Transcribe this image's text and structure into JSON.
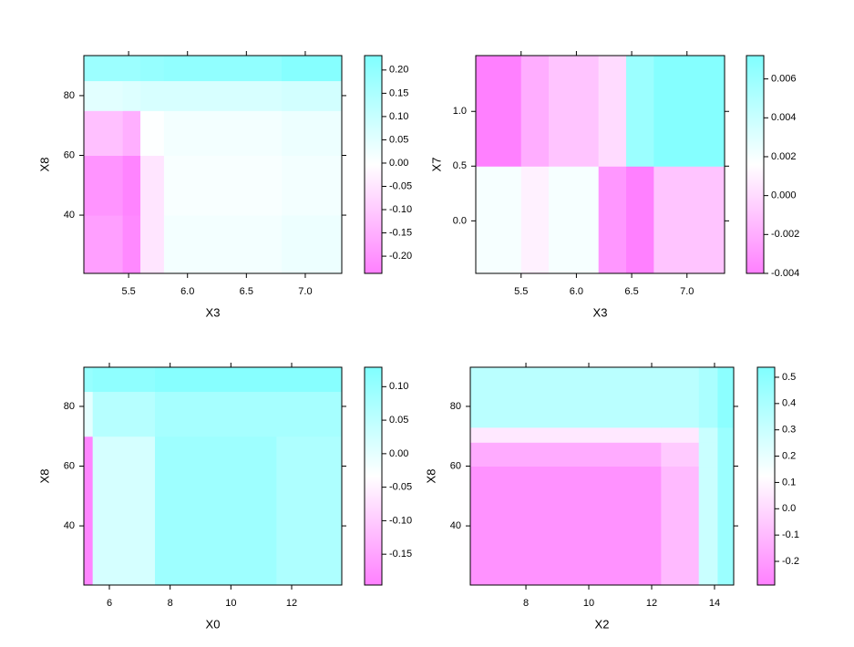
{
  "chart_data": [
    {
      "type": "heatmap",
      "xlabel": "X3",
      "ylabel": "X8",
      "colors": [
        "#ff80ff",
        "#ffffff",
        "#80ffff"
      ],
      "x": [
        5.12,
        5.45,
        5.6,
        5.8,
        6.8,
        7.31
      ],
      "y": [
        20.5,
        40,
        60,
        75,
        85,
        93.4
      ],
      "z": [
        [
          -0.18,
          -0.22,
          -0.05,
          0.02,
          0.03
        ],
        [
          -0.2,
          -0.23,
          -0.05,
          0.01,
          0.02
        ],
        [
          -0.12,
          -0.15,
          0.0,
          0.02,
          0.03
        ],
        [
          0.05,
          0.06,
          0.07,
          0.07,
          0.08
        ],
        [
          0.18,
          0.18,
          0.19,
          0.2,
          0.22
        ]
      ],
      "xlim": [
        5.12,
        7.31
      ],
      "ylim": [
        20.5,
        93.4
      ],
      "zlim": [
        -0.237,
        0.231
      ],
      "xticks": [
        5.5,
        {
          "value": 6,
          "label": "6.0"
        },
        6.5,
        {
          "value": 7,
          "label": "7.0"
        }
      ],
      "yticks": [
        40,
        60,
        80
      ],
      "zticks": [
        {
          "value": 0.2,
          "label": "0.20"
        },
        0.15,
        {
          "value": 0.1,
          "label": "0.10"
        },
        0.05,
        {
          "value": 0,
          "label": "0.00"
        },
        -0.05,
        {
          "value": -0.1,
          "label": "-0.10"
        },
        -0.15,
        {
          "value": -0.2,
          "label": "-0.20"
        }
      ]
    },
    {
      "type": "heatmap",
      "xlabel": "X3",
      "ylabel": "X7",
      "colors": [
        "#ff80ff",
        "#ffffff",
        "#80ffff"
      ],
      "x": [
        5.09,
        5.5,
        5.75,
        6.2,
        6.45,
        6.7,
        7.0,
        7.34
      ],
      "y": [
        -0.48,
        0.5,
        1.51
      ],
      "z": [
        [
          0.002,
          0.001,
          0.002,
          -0.003,
          -0.004,
          -0.001,
          -0.001
        ],
        [
          -0.004,
          -0.002,
          -0.001,
          0.0,
          0.006,
          0.007,
          0.007
        ]
      ],
      "xlim": [
        5.09,
        7.34
      ],
      "ylim": [
        -0.48,
        1.51
      ],
      "zlim": [
        -0.004,
        0.0072
      ],
      "xticks": [
        5.5,
        {
          "value": 6,
          "label": "6.0"
        },
        6.5,
        {
          "value": 7,
          "label": "7.0"
        }
      ],
      "yticks": [
        {
          "value": 0,
          "label": "0.0"
        },
        0.5,
        {
          "value": 1,
          "label": "1.0"
        }
      ],
      "zticks": [
        -0.004,
        -0.002,
        {
          "value": 0,
          "label": "0.000"
        },
        0.002,
        0.004,
        0.006
      ]
    },
    {
      "type": "heatmap",
      "xlabel": "X0",
      "ylabel": "X8",
      "colors": [
        "#ff80ff",
        "#ffffff",
        "#80ffff"
      ],
      "x": [
        5.16,
        5.45,
        7.5,
        11.5,
        13.65
      ],
      "y": [
        20.2,
        70,
        85,
        93.1
      ],
      "z": [
        [
          -0.19,
          0.02,
          0.09,
          0.07
        ],
        [
          0.0,
          0.06,
          0.08,
          0.08
        ],
        [
          0.1,
          0.11,
          0.12,
          0.12
        ]
      ],
      "xlim": [
        5.16,
        13.65
      ],
      "ylim": [
        20.2,
        93.1
      ],
      "zlim": [
        -0.196,
        0.129
      ],
      "xticks": [
        6,
        8,
        10,
        12
      ],
      "yticks": [
        40,
        60,
        80
      ],
      "zticks": [
        {
          "value": 0.1,
          "label": "0.10"
        },
        0.05,
        {
          "value": 0,
          "label": "0.00"
        },
        -0.05,
        {
          "value": -0.1,
          "label": "-0.10"
        },
        -0.15
      ]
    },
    {
      "type": "heatmap",
      "xlabel": "X2",
      "ylabel": "X8",
      "colors": [
        "#ff80ff",
        "#ffffff",
        "#80ffff"
      ],
      "x": [
        6.23,
        12.3,
        13.5,
        14.1,
        14.61
      ],
      "y": [
        20.2,
        60,
        68,
        73,
        93.1
      ],
      "z": [
        [
          -0.23,
          -0.1,
          0.3,
          0.45
        ],
        [
          -0.15,
          -0.05,
          0.3,
          0.45
        ],
        [
          0.05,
          0.05,
          0.3,
          0.45
        ],
        [
          0.35,
          0.35,
          0.4,
          0.5
        ]
      ],
      "xlim": [
        6.23,
        14.61
      ],
      "ylim": [
        20.2,
        93.1
      ],
      "zlim": [
        -0.29,
        0.538
      ],
      "xticks": [
        8,
        10,
        12,
        14
      ],
      "yticks": [
        40,
        60,
        80
      ],
      "zticks": [
        0.5,
        0.4,
        0.3,
        0.2,
        0.1,
        {
          "value": 0,
          "label": "0.0"
        },
        -0.1,
        -0.2
      ]
    }
  ]
}
